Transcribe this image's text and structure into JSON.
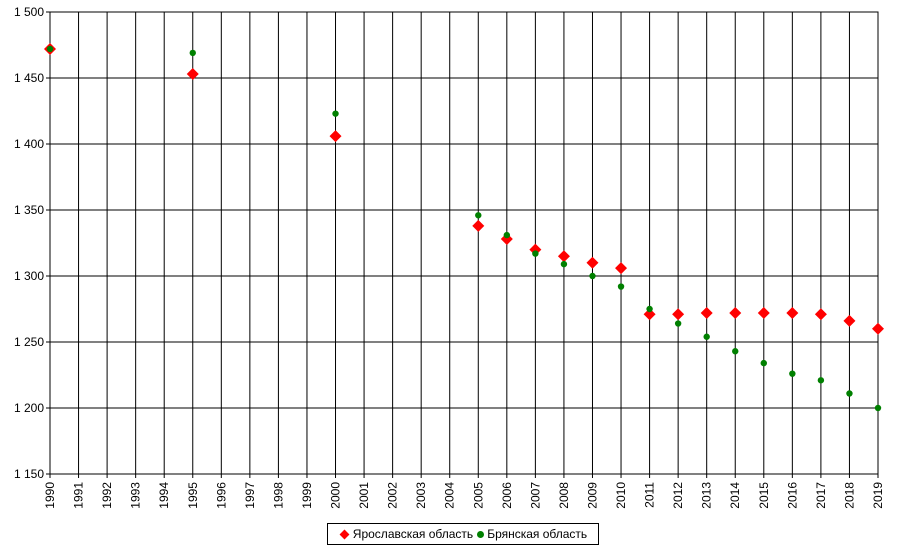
{
  "chart_data": {
    "type": "scatter",
    "title": "",
    "xlabel": "",
    "ylabel": "",
    "x": [
      1990,
      1991,
      1992,
      1993,
      1994,
      1995,
      1996,
      1997,
      1998,
      1999,
      2000,
      2001,
      2002,
      2003,
      2004,
      2005,
      2006,
      2007,
      2008,
      2009,
      2010,
      2011,
      2012,
      2013,
      2014,
      2015,
      2016,
      2017,
      2018,
      2019
    ],
    "x_tick_labels": [
      "1990",
      "1991",
      "1992",
      "1993",
      "1994",
      "1995",
      "1996",
      "1997",
      "1998",
      "1999",
      "2000",
      "2001",
      "2002",
      "2003",
      "2004",
      "2005",
      "2006",
      "2007",
      "2008",
      "2009",
      "2010",
      "2011",
      "2012",
      "2013",
      "2014",
      "2015",
      "2016",
      "2017",
      "2018",
      "2019"
    ],
    "y_ticks": [
      1150,
      1200,
      1250,
      1300,
      1350,
      1400,
      1450,
      1500
    ],
    "y_tick_labels": [
      "1 150",
      "1 200",
      "1 250",
      "1 300",
      "1 350",
      "1 400",
      "1 450",
      "1 500"
    ],
    "ylim": [
      1150,
      1500
    ],
    "xlim": [
      1990,
      2019
    ],
    "grid": true,
    "legend_position": "bottom-center",
    "series": [
      {
        "name": "Ярославская область",
        "marker": "diamond",
        "color": "#ff0000",
        "points": [
          [
            1990,
            1472
          ],
          [
            1995,
            1453
          ],
          [
            2000,
            1406
          ],
          [
            2005,
            1338
          ],
          [
            2006,
            1328
          ],
          [
            2007,
            1320
          ],
          [
            2008,
            1315
          ],
          [
            2009,
            1310
          ],
          [
            2010,
            1306
          ],
          [
            2011,
            1271
          ],
          [
            2012,
            1271
          ],
          [
            2013,
            1272
          ],
          [
            2014,
            1272
          ],
          [
            2015,
            1272
          ],
          [
            2016,
            1272
          ],
          [
            2017,
            1271
          ],
          [
            2018,
            1266
          ],
          [
            2019,
            1260
          ]
        ]
      },
      {
        "name": "Брянская область",
        "marker": "circle",
        "color": "#008000",
        "points": [
          [
            1990,
            1472
          ],
          [
            1995,
            1469
          ],
          [
            2000,
            1423
          ],
          [
            2005,
            1346
          ],
          [
            2006,
            1331
          ],
          [
            2007,
            1317
          ],
          [
            2008,
            1309
          ],
          [
            2009,
            1300
          ],
          [
            2010,
            1292
          ],
          [
            2011,
            1275
          ],
          [
            2012,
            1264
          ],
          [
            2013,
            1254
          ],
          [
            2014,
            1243
          ],
          [
            2015,
            1234
          ],
          [
            2016,
            1226
          ],
          [
            2017,
            1221
          ],
          [
            2018,
            1211
          ],
          [
            2019,
            1200
          ]
        ]
      }
    ]
  }
}
